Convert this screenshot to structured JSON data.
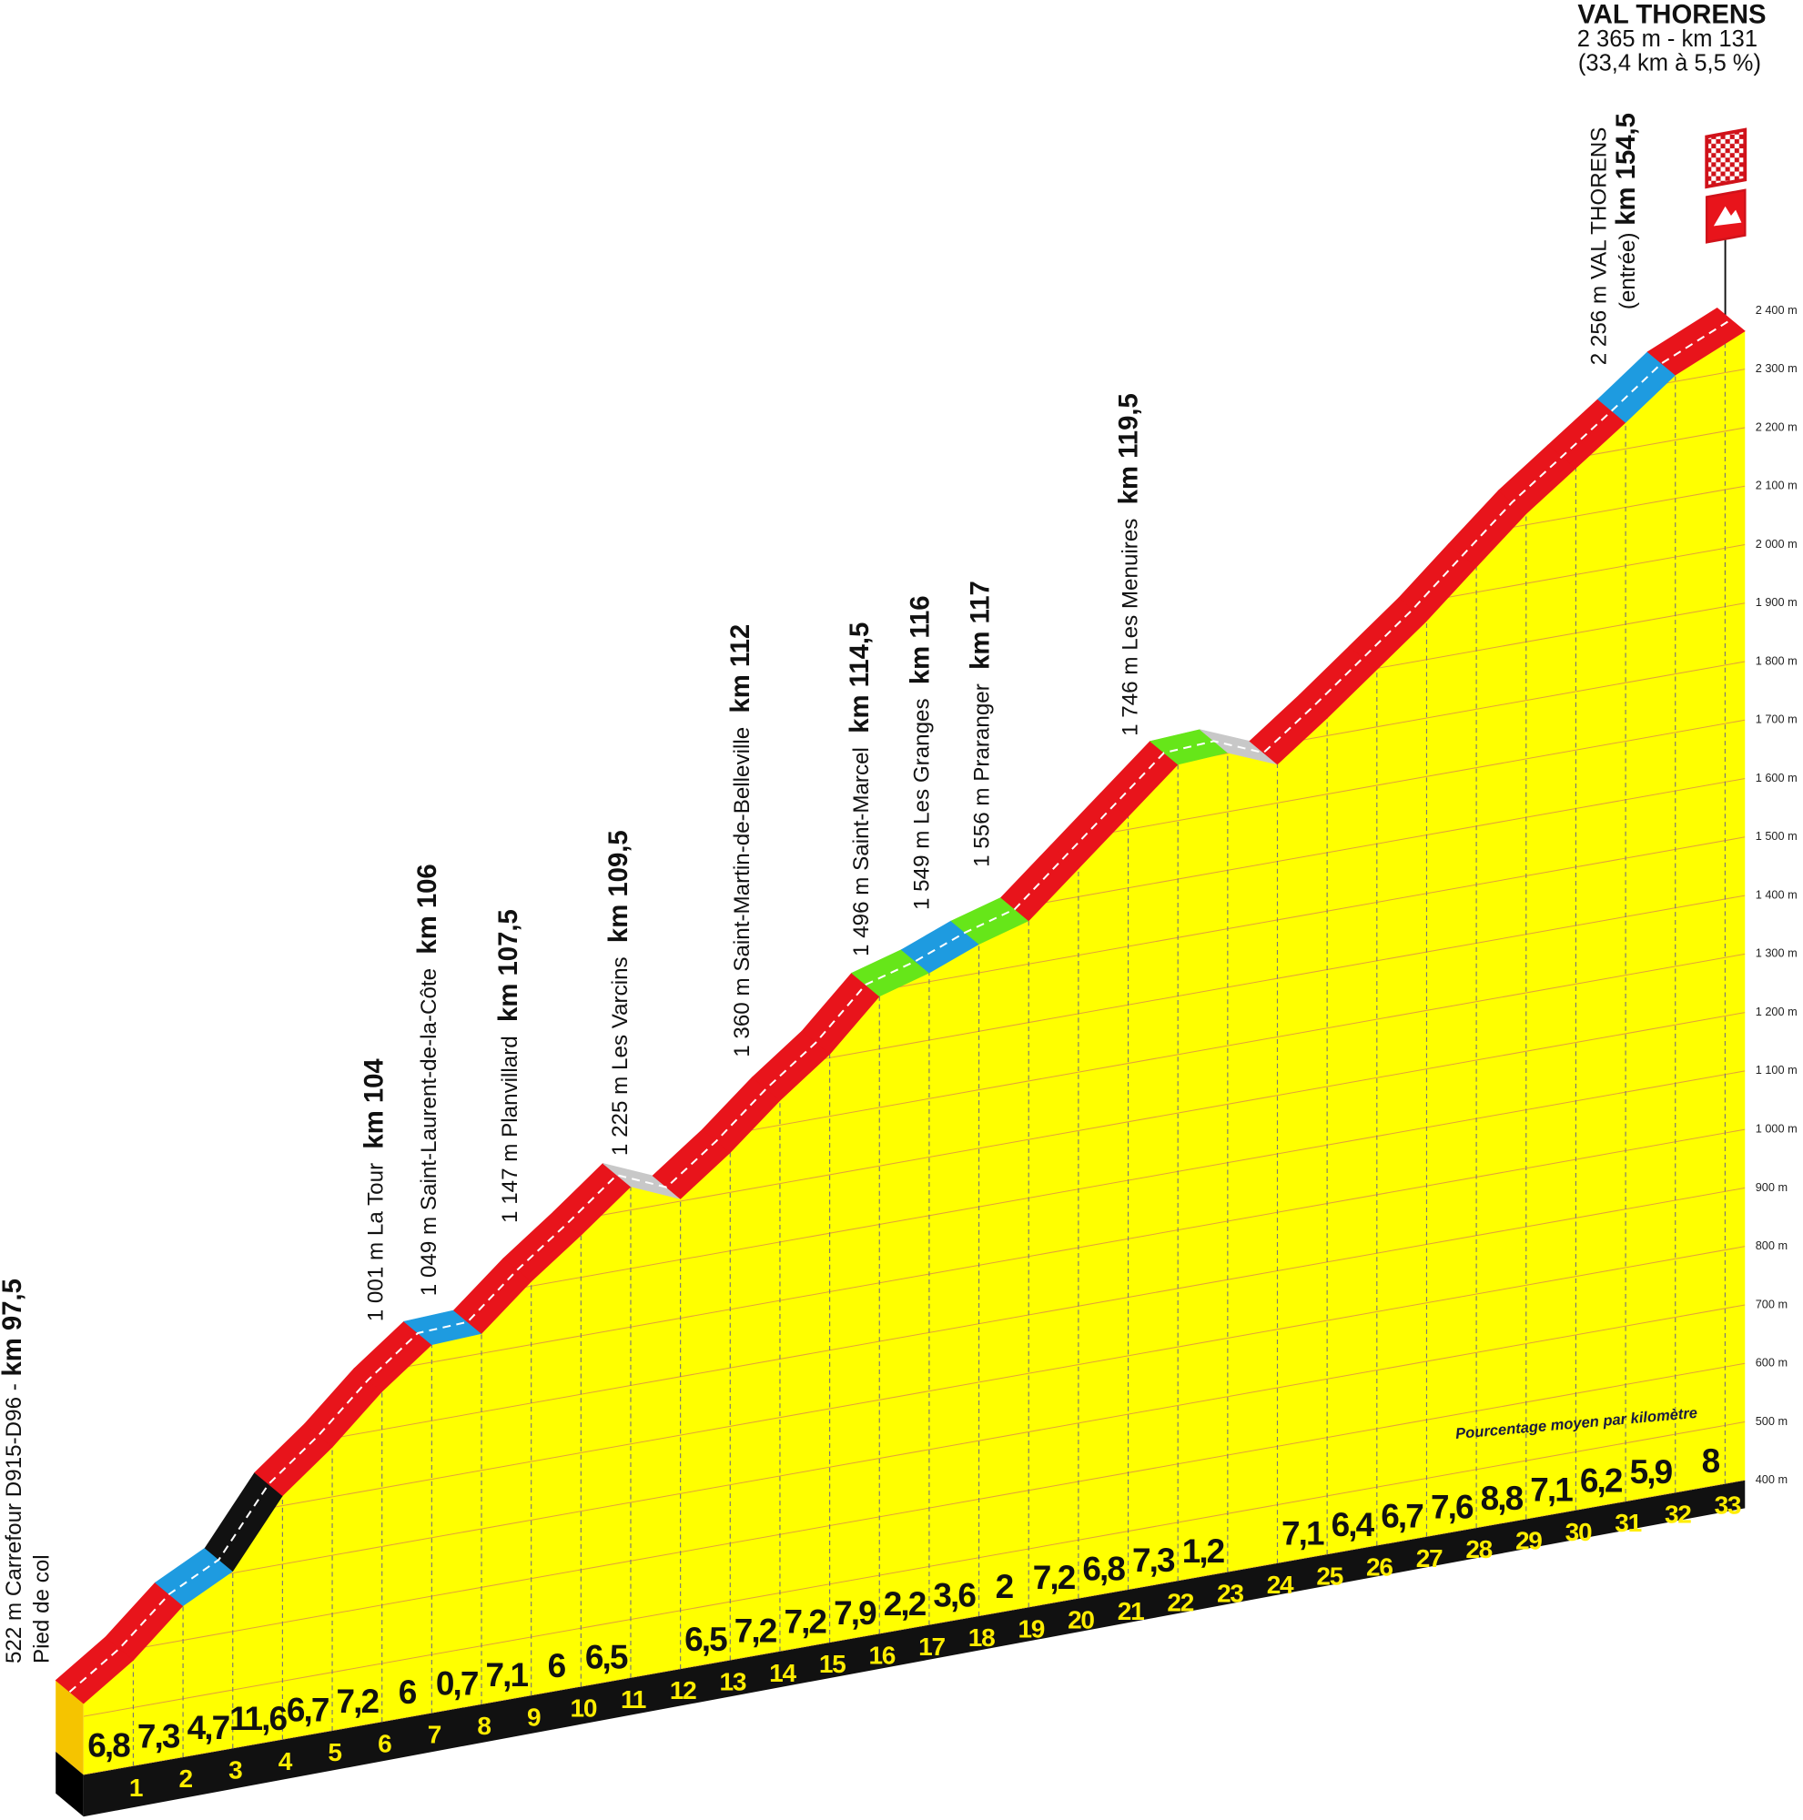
{
  "chart_data": {
    "type": "climb-profile",
    "title": "VAL THORENS",
    "subtitle": "2 365 m - km 131",
    "summary": "(33,4 km à 5,5 %)",
    "note": "Pourcentage moyen par kilomètre",
    "km": [
      0,
      1,
      2,
      3,
      4,
      5,
      6,
      7,
      8,
      9,
      10,
      11,
      12,
      13,
      14,
      15,
      16,
      17,
      18,
      19,
      20,
      21,
      22,
      23,
      24,
      25,
      26,
      27,
      28,
      29,
      30,
      31,
      32,
      33.4
    ],
    "elevation": [
      522,
      581,
      659,
      703,
      817,
      885,
      965,
      1030,
      1034,
      1108,
      1172,
      1240,
      1204,
      1268,
      1342,
      1406,
      1490,
      1515,
      1549,
      1574,
      1648,
      1722,
      1796,
      1801,
      1766,
      1830,
      1898,
      1966,
      2043,
      2119,
      2182,
      2245,
      2311,
      2365
    ],
    "gradients": [
      6.8,
      7.3,
      4.7,
      11.6,
      6.7,
      7.2,
      6,
      0.7,
      7.1,
      6,
      6.5,
      null,
      6.5,
      7.2,
      7.2,
      7.9,
      2.2,
      3.6,
      2,
      7.2,
      6.8,
      7.3,
      1.2,
      null,
      7.1,
      6.4,
      6.7,
      7.6,
      8.8,
      7.1,
      6.2,
      5.9,
      8
    ],
    "value_labels": [
      "6,8",
      "7,3",
      "4,7",
      "11,6",
      "6,7",
      "7,2",
      "6",
      "0,7",
      "7,1",
      "6",
      "6,5",
      null,
      "6,5",
      "7,2",
      "7,2",
      "7,9",
      "2,2",
      "3,6",
      "2",
      "7,2",
      "6,8",
      "7,3",
      "1,2",
      null,
      "7,1",
      "6,4",
      "6,7",
      "7,6",
      "8,8",
      "7,1",
      "6,2",
      "5,9",
      "8"
    ],
    "segment_colors": [
      "#e8141b",
      "#e8141b",
      "#1e9be0",
      "#111111",
      "#e8141b",
      "#e8141b",
      "#e8141b",
      "#1e9be0",
      "#e8141b",
      "#e8141b",
      "#e8141b",
      "#c8c8c8",
      "#e8141b",
      "#e8141b",
      "#e8141b",
      "#e8141b",
      "#66e619",
      "#1e9be0",
      "#66e619",
      "#e8141b",
      "#e8141b",
      "#e8141b",
      "#66e619",
      "#c8c8c8",
      "#e8141b",
      "#e8141b",
      "#e8141b",
      "#e8141b",
      "#e8141b",
      "#e8141b",
      "#e8141b",
      "#1e9be0",
      "#e8141b"
    ],
    "fill_color": "#ffff00",
    "xlim": [
      0,
      33.4
    ],
    "xticks": [
      1,
      2,
      3,
      4,
      5,
      6,
      7,
      8,
      9,
      10,
      11,
      12,
      13,
      14,
      15,
      16,
      17,
      18,
      19,
      20,
      21,
      22,
      23,
      24,
      25,
      26,
      27,
      28,
      29,
      30,
      31,
      32,
      33
    ],
    "ylim": [
      400,
      2400
    ],
    "yticks": [
      {
        "value": 400,
        "label": "400 m"
      },
      {
        "value": 500,
        "label": "500 m"
      },
      {
        "value": 600,
        "label": "600 m"
      },
      {
        "value": 700,
        "label": "700 m"
      },
      {
        "value": 800,
        "label": "800 m"
      },
      {
        "value": 900,
        "label": "900 m"
      },
      {
        "value": 1000,
        "label": "1 000 m"
      },
      {
        "value": 1100,
        "label": "1 100 m"
      },
      {
        "value": 1200,
        "label": "1 200 m"
      },
      {
        "value": 1300,
        "label": "1 300 m"
      },
      {
        "value": 1400,
        "label": "1 400 m"
      },
      {
        "value": 1500,
        "label": "1 500 m"
      },
      {
        "value": 1600,
        "label": "1 600 m"
      },
      {
        "value": 1700,
        "label": "1 700 m"
      },
      {
        "value": 1800,
        "label": "1 800 m"
      },
      {
        "value": 1900,
        "label": "1 900 m"
      },
      {
        "value": 2000,
        "label": "2 000 m"
      },
      {
        "value": 2100,
        "label": "2 100 m"
      },
      {
        "value": 2200,
        "label": "2 200 m"
      },
      {
        "value": 2300,
        "label": "2 300 m"
      },
      {
        "value": 2400,
        "label": "2 400 m"
      }
    ],
    "grid": true,
    "waypoints": [
      {
        "label": "522 m Carrefour D915-D96 -",
        "km": "km 97,5",
        "detail": "Pied de col"
      },
      {
        "label": "1 001 m La Tour",
        "km": "km 104"
      },
      {
        "label": "1 049 m Saint-Laurent-de-la-Côte",
        "km": "km 106"
      },
      {
        "label": "1 147 m Planvillard",
        "km": "km 107,5"
      },
      {
        "label": "1 225 m Les Varcins",
        "km": "km 109,5"
      },
      {
        "label": "1 360 m Saint-Martin-de-Belleville",
        "km": "km 112"
      },
      {
        "label": "1 496 m Saint-Marcel",
        "km": "km 114,5"
      },
      {
        "label": "1 549 m Les Granges",
        "km": "km 116"
      },
      {
        "label": "1 556 m Praranger",
        "km": "km 117"
      },
      {
        "label": "1 746 m Les Menuires",
        "km": "km 119,5"
      },
      {
        "label": "2 256 m VAL THORENS",
        "detail": "(entrée)",
        "km": "km 154,5"
      }
    ]
  }
}
